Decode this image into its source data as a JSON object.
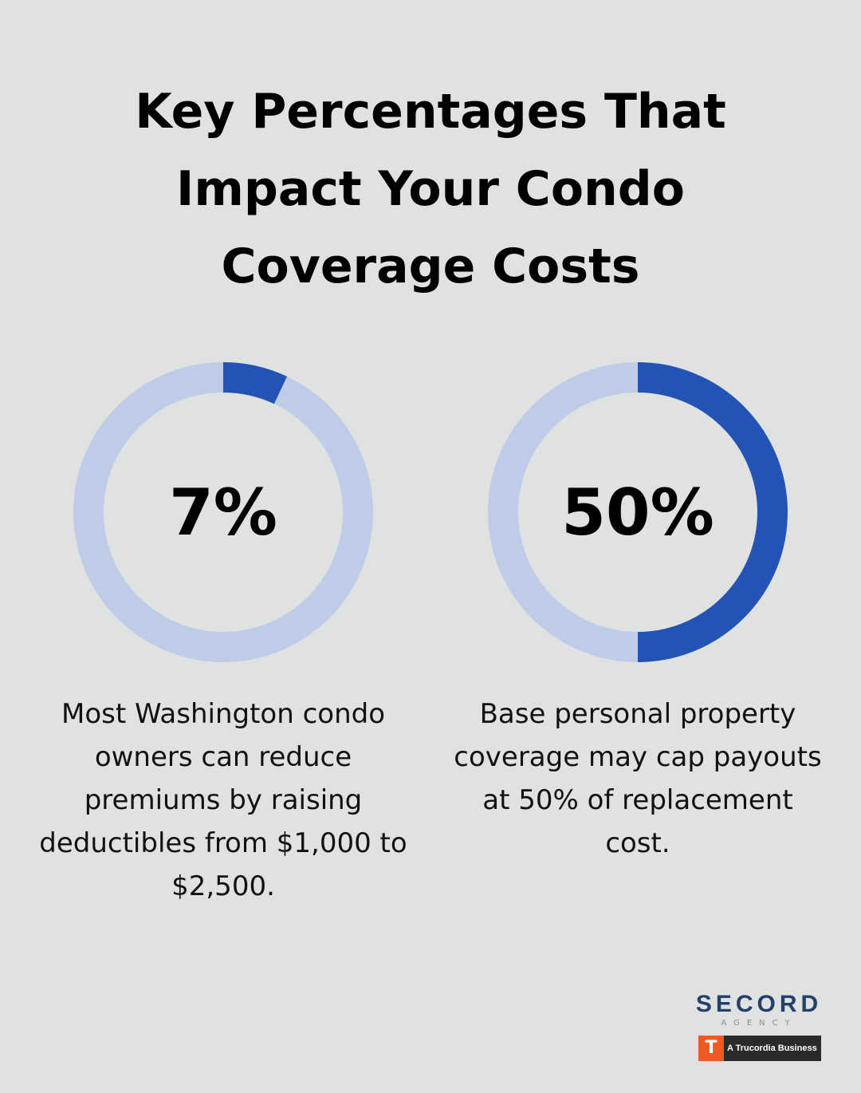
{
  "title": "Key Percentages That Impact Your Condo Coverage Costs",
  "chart_data": [
    {
      "type": "donut",
      "values": [
        7
      ],
      "value_labels": [
        "7%"
      ],
      "ylim": [
        0,
        100
      ],
      "color": "#2453b6",
      "track_color": "#bfcce8",
      "caption": "Most Washington condo owners can reduce premiums by raising deductibles from $1,000 to $2,500."
    },
    {
      "type": "donut",
      "values": [
        50
      ],
      "value_labels": [
        "50%"
      ],
      "ylim": [
        0,
        100
      ],
      "color": "#2453b6",
      "track_color": "#bfcce8",
      "caption": "Base personal property coverage may cap payouts at 50% of replacement cost."
    }
  ],
  "logo": {
    "name": "SECORD",
    "sub": "AGENCY",
    "badge": "A Trucordia Business"
  }
}
